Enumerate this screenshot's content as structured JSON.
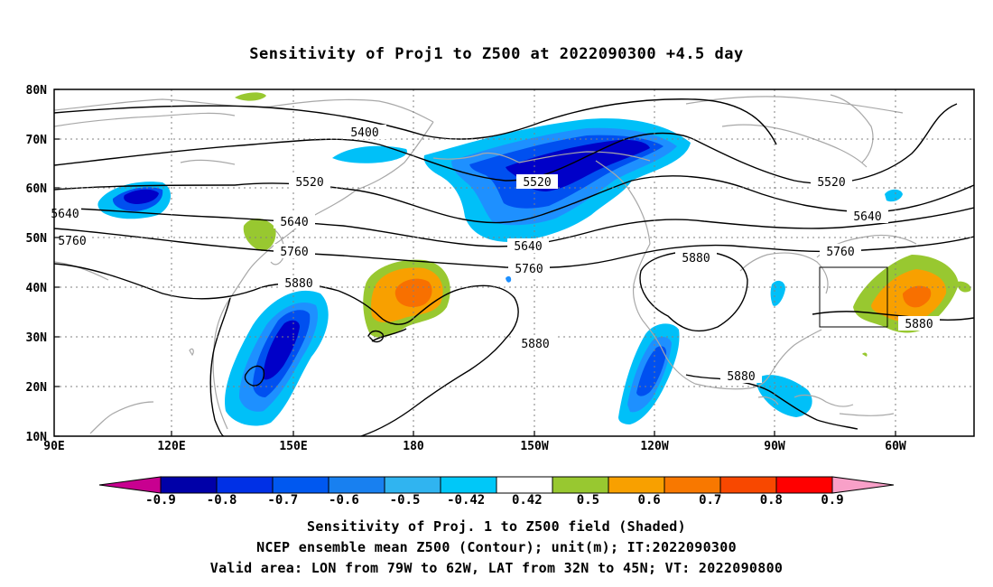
{
  "title": "Sensitivity of Proj1 to Z500 at 2022090300 +4.5 day",
  "map": {
    "lat_labels": [
      "80N",
      "70N",
      "60N",
      "50N",
      "40N",
      "30N",
      "20N",
      "10N"
    ],
    "lon_labels": [
      "90E",
      "120E",
      "150E",
      "180",
      "150W",
      "120W",
      "90W",
      "60W"
    ],
    "contour_labels": {
      "c5400": "5400",
      "c5520a": "5520",
      "c5520b": "5520",
      "c5520c": "5520",
      "c5640a": "5640",
      "c5640b": "5640",
      "c5640c": "5640",
      "c5640d": "5640",
      "c5760a": "5760",
      "c5760b": "5760",
      "c5760c": "5760",
      "c5760d": "5760",
      "c5880a": "5880",
      "c5880b": "5880",
      "c5880c": "5880",
      "c5880d": "5880",
      "c5880e": "5880"
    },
    "valid_box": {
      "lon_from": "79W",
      "lon_to": "62W",
      "lat_from": "32N",
      "lat_to": "45N"
    }
  },
  "colorbar": {
    "labels": [
      "-0.9",
      "-0.8",
      "-0.7",
      "-0.6",
      "-0.5",
      "-0.42",
      "0.42",
      "0.5",
      "0.6",
      "0.7",
      "0.8",
      "0.9"
    ],
    "colors": [
      "#0000a8",
      "#0030e6",
      "#0058f0",
      "#1880f0",
      "#30b4f0",
      "#00c8f8",
      "#ffffff",
      "#98c830",
      "#f8a000",
      "#f87800",
      "#f84800",
      "#ff0000"
    ],
    "left_arrow_color": "#c80090",
    "right_arrow_color": "#f8a0c8"
  },
  "colors": {
    "neg_dark": "#0000c8",
    "neg_mid": "#0050f0",
    "neg_light": "#1e90ff",
    "neg_pale": "#00c0f8",
    "pos_green": "#98c830",
    "pos_orange": "#f8a000",
    "pos_dark_orange": "#f87000",
    "coast": "#a8a8a8"
  },
  "footer": {
    "line1": "Sensitivity of Proj. 1 to Z500 field (Shaded)",
    "line2": "NCEP ensemble mean Z500 (Contour); unit(m); IT:2022090300",
    "line3": "Valid area: LON from 79W to 62W, LAT from 32N to 45N; VT: 2022090800"
  }
}
